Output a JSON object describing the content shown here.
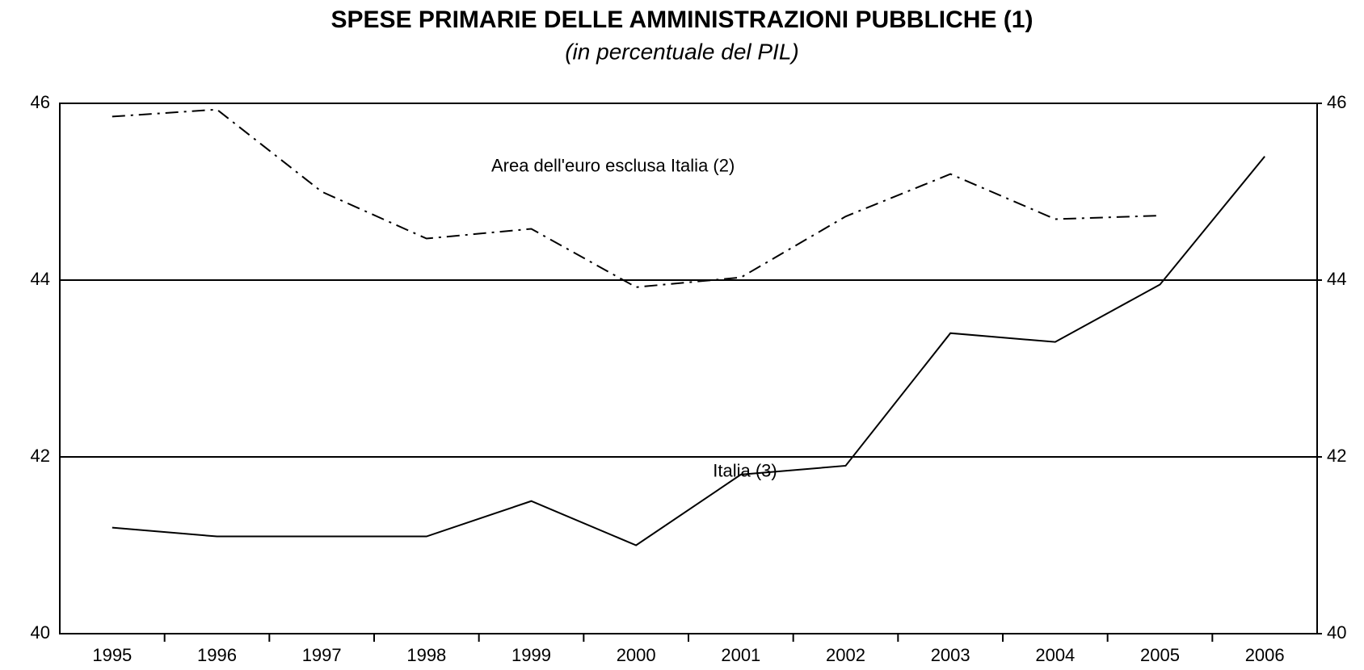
{
  "chart_data": {
    "type": "line",
    "title": "SPESE PRIMARIE DELLE AMMINISTRAZIONI PUBBLICHE  (1)",
    "subtitle": "(in percentuale del PIL)",
    "categories": [
      "1995",
      "1996",
      "1997",
      "1998",
      "1999",
      "2000",
      "2001",
      "2002",
      "2003",
      "2004",
      "2005",
      "2006"
    ],
    "series": [
      {
        "name": "Area dell'euro esclusa Italia (2)",
        "color": "#000000",
        "line_style": "dashdot",
        "values": [
          45.85,
          45.93,
          45.0,
          44.47,
          44.58,
          43.92,
          44.03,
          44.72,
          45.2,
          44.69,
          44.73,
          null
        ]
      },
      {
        "name": "Italia (3)",
        "color": "#000000",
        "line_style": "solid",
        "values": [
          41.2,
          41.1,
          41.1,
          41.1,
          41.5,
          41.0,
          41.8,
          41.9,
          43.4,
          43.3,
          43.95,
          45.4
        ]
      }
    ],
    "ylim": [
      40,
      46
    ],
    "yticks": [
      40,
      42,
      44,
      46
    ],
    "y2lim": [
      40,
      46
    ],
    "y2ticks": [
      40,
      42,
      44,
      46
    ],
    "grid": true
  }
}
